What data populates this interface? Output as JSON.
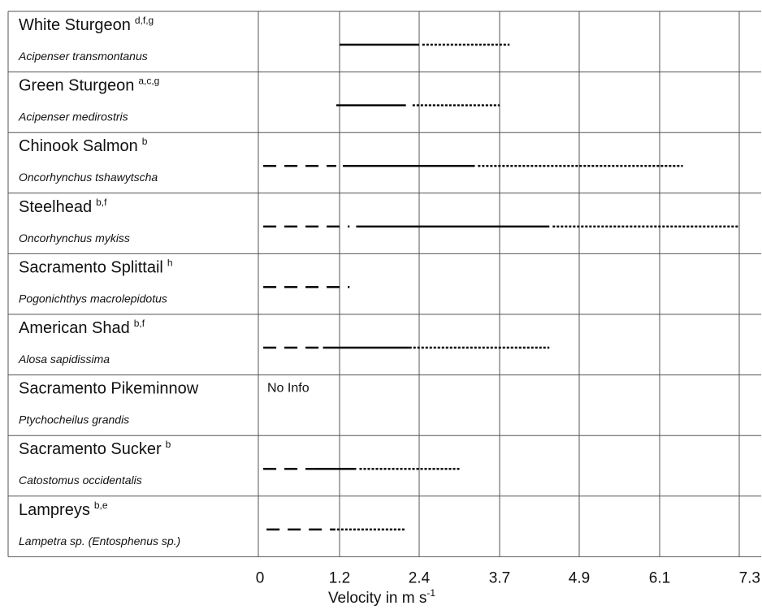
{
  "chart_data": {
    "type": "range_bar",
    "xlabel": "Velocity in m s",
    "xlabel_superscript": "-1",
    "x_ticks": [
      0,
      1.2,
      2.4,
      3.7,
      4.9,
      6.1,
      7.3
    ],
    "x_tick_labels": [
      "0",
      "1.2",
      "2.4",
      "3.7",
      "4.9",
      "6.1",
      "7.3"
    ],
    "xlim": [
      0,
      7.3
    ],
    "legend": "none",
    "grid": true,
    "species": [
      {
        "common": "White Sturgeon",
        "sup": "d,f,g",
        "latin": "Acipenser transmontanus",
        "segments": [
          {
            "style": "solid",
            "x0": 1.2,
            "x1": 2.4
          },
          {
            "style": "dotted",
            "x0": 2.45,
            "x1": 3.85
          }
        ]
      },
      {
        "common": "Green Sturgeon",
        "sup": "a,c,g",
        "latin": "Acipenser medirostris",
        "segments": [
          {
            "style": "solid",
            "x0": 1.15,
            "x1": 2.2
          },
          {
            "style": "dotted",
            "x0": 2.3,
            "x1": 3.7
          }
        ]
      },
      {
        "common": "Chinook Salmon",
        "sup": "b",
        "latin": "Oncorhynchus tshawytscha",
        "segments": [
          {
            "style": "dashed",
            "x0": 0.05,
            "x1": 1.15
          },
          {
            "style": "solid",
            "x0": 1.25,
            "x1": 3.3
          },
          {
            "style": "dotted",
            "x0": 3.35,
            "x1": 6.45
          }
        ]
      },
      {
        "common": "Steelhead",
        "sup": "b,f",
        "latin": "Oncorhynchus mykiss",
        "segments": [
          {
            "style": "dashed",
            "x0": 0.05,
            "x1": 1.35
          },
          {
            "style": "solid",
            "x0": 1.45,
            "x1": 4.45
          },
          {
            "style": "dotted",
            "x0": 4.5,
            "x1": 7.3
          }
        ]
      },
      {
        "common": "Sacramento Splittail",
        "sup": "h",
        "latin": "Pogonichthys macrolepidotus",
        "segments": [
          {
            "style": "dashed",
            "x0": 0.05,
            "x1": 1.35
          }
        ]
      },
      {
        "common": "American Shad",
        "sup": "b,f",
        "latin": "Alosa sapidissima",
        "segments": [
          {
            "style": "dashed",
            "x0": 0.05,
            "x1": 0.95
          },
          {
            "style": "solid",
            "x0": 0.95,
            "x1": 2.25
          },
          {
            "style": "dotted",
            "x0": 2.25,
            "x1": 4.45
          }
        ]
      },
      {
        "common": "Sacramento Pikeminnow",
        "sup": "",
        "latin": "Ptychocheilus grandis",
        "note": "No Info",
        "segments": []
      },
      {
        "common": "Sacramento Sucker",
        "sup": "b",
        "latin": "Catostomus occidentalis",
        "segments": [
          {
            "style": "dashed",
            "x0": 0.05,
            "x1": 0.8
          },
          {
            "style": "solid",
            "x0": 0.8,
            "x1": 1.45
          },
          {
            "style": "dotted",
            "x0": 1.5,
            "x1": 3.05
          }
        ]
      },
      {
        "common": "Lampreys",
        "sup": "b,e",
        "latin": "Lampetra sp. (Entosphenus sp.)",
        "segments": [
          {
            "style": "dashed",
            "x0": 0.1,
            "x1": 1.1
          },
          {
            "style": "dotted",
            "x0": 1.1,
            "x1": 2.2
          }
        ]
      }
    ]
  }
}
